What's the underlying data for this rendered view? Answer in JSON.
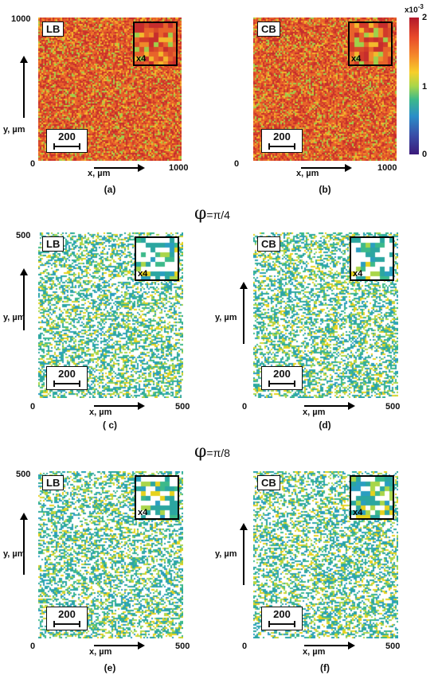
{
  "rows": [
    {
      "panels": [
        {
          "id": "a",
          "tag": "LB",
          "inset": "x4",
          "scale": "200",
          "mode": "full",
          "caption": "(a)"
        },
        {
          "id": "b",
          "tag": "CB",
          "inset": "x4",
          "scale": "200",
          "mode": "full",
          "caption": "(b)"
        }
      ],
      "y_top": "1000",
      "x_right": "1000",
      "origin": "0",
      "ylabel": "y, µm",
      "xlabel": "x, µm",
      "colorbar": {
        "exp_base": "x10",
        "exp_power": "-3",
        "ticks": [
          "2",
          "1",
          "0"
        ]
      }
    },
    {
      "phi_symbol": "φ",
      "phi_value": "=π/4",
      "panels": [
        {
          "id": "c",
          "tag": "LB",
          "inset": "x4",
          "scale": "200",
          "mode": "sparse",
          "caption": "( c)"
        },
        {
          "id": "d",
          "tag": "CB",
          "inset": "x4",
          "scale": "200",
          "mode": "sparse",
          "caption": "(d)"
        }
      ],
      "y_top": "500",
      "x_right": "500",
      "origin": "0",
      "ylabel": "y, µm",
      "xlabel": "x, µm"
    },
    {
      "phi_symbol": "φ",
      "phi_value": "=π/8",
      "panels": [
        {
          "id": "e",
          "tag": "LB",
          "inset": "x4",
          "scale": "200",
          "mode": "sparse",
          "caption": "(e)"
        },
        {
          "id": "f",
          "tag": "CB",
          "inset": "x4",
          "scale": "200",
          "mode": "sparse",
          "caption": "(f)"
        }
      ],
      "y_top": "500",
      "x_right": "500",
      "origin": "0",
      "ylabel": "y, µm",
      "xlabel": "x, µm"
    }
  ],
  "colors": {
    "high": "#c0392b",
    "mid": "#f39c12",
    "yellow": "#e6d21e",
    "green": "#7fc84a",
    "teal": "#2ba6a0"
  }
}
